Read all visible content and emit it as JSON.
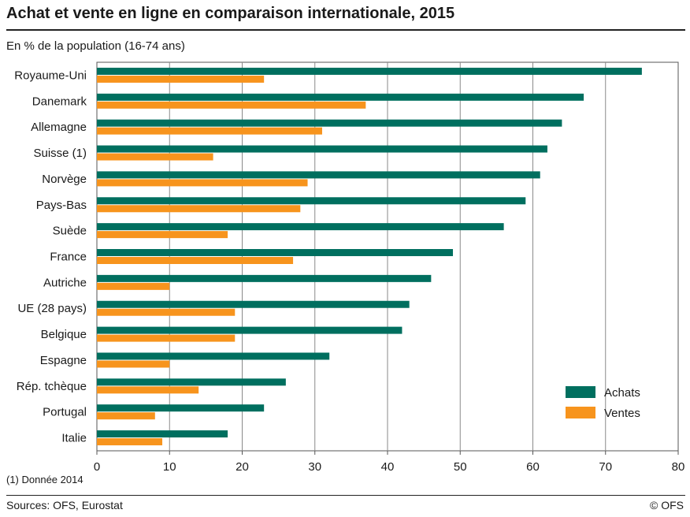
{
  "title": "Achat et vente en ligne en comparaison internationale, 2015",
  "subtitle": "En % de la population  (16-74 ans)",
  "footnote": "(1) Donnée 2014",
  "sources": "Sources: OFS, Eurostat",
  "copyright": "© OFS",
  "chart_data": {
    "type": "bar",
    "orientation": "horizontal",
    "categories": [
      "Royaume-Uni",
      "Danemark",
      "Allemagne",
      "Suisse (1)",
      "Norvège",
      "Pays-Bas",
      "Suède",
      "France",
      "Autriche",
      "UE (28 pays)",
      "Belgique",
      "Espagne",
      "Rép. tchèque",
      "Portugal",
      "Italie"
    ],
    "series": [
      {
        "name": "Achats",
        "color": "#006f5f",
        "values": [
          75,
          67,
          64,
          62,
          61,
          59,
          56,
          49,
          46,
          43,
          42,
          32,
          26,
          23,
          18
        ]
      },
      {
        "name": "Ventes",
        "color": "#f7941d",
        "values": [
          23,
          37,
          31,
          16,
          29,
          28,
          18,
          27,
          10,
          19,
          19,
          10,
          14,
          8,
          9
        ]
      }
    ],
    "xlim": [
      0,
      80
    ],
    "xticks": [
      0,
      10,
      20,
      30,
      40,
      50,
      60,
      70,
      80
    ],
    "grid": true,
    "legend_position": "bottom-right"
  }
}
